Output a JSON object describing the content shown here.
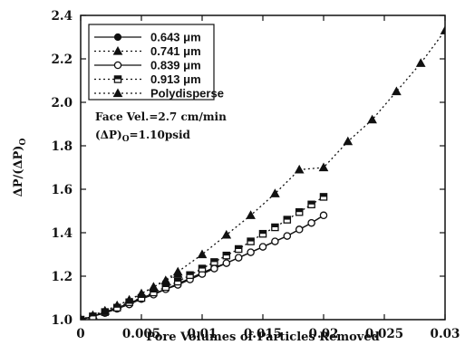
{
  "chart_data": {
    "type": "line",
    "xlabel": "Pore Volumes of Particles Removed",
    "ylabel": "ΔP/(ΔP)",
    "ylabel_sub": "O",
    "xlim": [
      0,
      0.03
    ],
    "ylim": [
      1.0,
      2.4
    ],
    "x_ticks": [
      0,
      0.005,
      0.01,
      0.015,
      0.02,
      0.025,
      0.03
    ],
    "x_tick_labels": [
      "0",
      "0.005",
      "0.01",
      "0.015",
      "0.02",
      "0.025",
      "0.03"
    ],
    "y_ticks": [
      1.0,
      1.2,
      1.4,
      1.6,
      1.8,
      2.0,
      2.2,
      2.4
    ],
    "y_tick_labels": [
      "1.0",
      "1.2",
      "1.4",
      "1.6",
      "1.8",
      "2.0",
      "2.2",
      "2.4"
    ],
    "grid": false,
    "legend_position": "top-left",
    "annotations": {
      "line1": "Face Vel.=2.7 cm/min",
      "line2_main": "(ΔP)",
      "line2_sub": "O",
      "line2_tail": "=1.10psid"
    },
    "series": [
      {
        "name": "0.643 μm",
        "line": "solid",
        "marker": "circle-filled",
        "x": [
          0,
          0.001,
          0.002,
          0.003,
          0.004,
          0.005,
          0.006,
          0.007,
          0.008,
          0.009,
          0.01,
          0.011,
          0.012,
          0.013,
          0.014,
          0.015,
          0.016,
          0.017,
          0.018,
          0.019,
          0.02
        ],
        "y": [
          1.0,
          1.015,
          1.035,
          1.055,
          1.075,
          1.1,
          1.12,
          1.14,
          1.165,
          1.19,
          1.215,
          1.24,
          1.26,
          1.285,
          1.31,
          1.335,
          1.36,
          1.385,
          1.415,
          1.445,
          1.48
        ]
      },
      {
        "name": "0.741 μm",
        "line": "dotted",
        "marker": "triangle-filled",
        "x": [
          0,
          0.001,
          0.002,
          0.003,
          0.004,
          0.005,
          0.006,
          0.007,
          0.008
        ],
        "y": [
          1.0,
          1.02,
          1.04,
          1.065,
          1.09,
          1.12,
          1.15,
          1.18,
          1.21
        ]
      },
      {
        "name": "0.839 μm",
        "line": "solid",
        "marker": "circle-open",
        "x": [
          0,
          0.001,
          0.002,
          0.003,
          0.004,
          0.005,
          0.006,
          0.007,
          0.008,
          0.009,
          0.01,
          0.011,
          0.012,
          0.013,
          0.014,
          0.015,
          0.016,
          0.017,
          0.018,
          0.019,
          0.02
        ],
        "y": [
          1.0,
          1.015,
          1.03,
          1.05,
          1.07,
          1.095,
          1.115,
          1.14,
          1.16,
          1.185,
          1.21,
          1.235,
          1.26,
          1.285,
          1.31,
          1.335,
          1.36,
          1.385,
          1.415,
          1.445,
          1.48
        ]
      },
      {
        "name": "0.913 μm",
        "line": "dotted",
        "marker": "square-half",
        "x": [
          0,
          0.001,
          0.002,
          0.003,
          0.004,
          0.005,
          0.006,
          0.007,
          0.008,
          0.009,
          0.01,
          0.011,
          0.012,
          0.013,
          0.014,
          0.015,
          0.016,
          0.017,
          0.018,
          0.019,
          0.02
        ],
        "y": [
          1.0,
          1.015,
          1.035,
          1.055,
          1.08,
          1.1,
          1.125,
          1.15,
          1.175,
          1.205,
          1.235,
          1.265,
          1.295,
          1.325,
          1.36,
          1.395,
          1.425,
          1.46,
          1.495,
          1.53,
          1.565
        ]
      },
      {
        "name": "Polydisperse",
        "line": "dotted",
        "marker": "triangle-filled",
        "x": [
          0,
          0.002,
          0.004,
          0.006,
          0.008,
          0.01,
          0.012,
          0.014,
          0.016,
          0.018,
          0.02,
          0.022,
          0.024,
          0.026,
          0.028,
          0.03
        ],
        "y": [
          1.0,
          1.04,
          1.09,
          1.15,
          1.22,
          1.3,
          1.39,
          1.48,
          1.58,
          1.69,
          1.7,
          1.82,
          1.92,
          2.05,
          2.18,
          2.33
        ]
      }
    ]
  }
}
